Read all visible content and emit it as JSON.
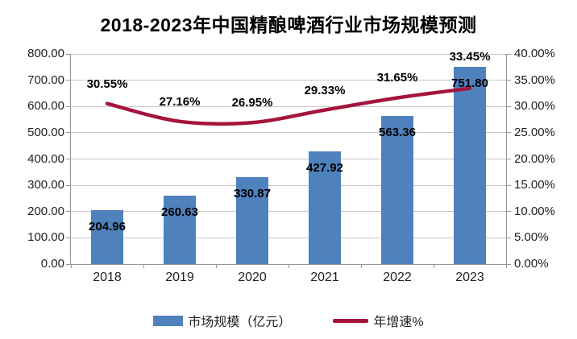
{
  "title": "2018-2023年中国精酿啤酒行业市场规模预测",
  "colors": {
    "bar": "#4F81BD",
    "line": "#A5143C",
    "gridline": "#c8c8c8",
    "axis": "#969696"
  },
  "chart_data": {
    "type": "bar",
    "subtype": "combo-bar-line",
    "title": "2018-2023年中国精酿啤酒行业市场规模预测",
    "categories": [
      "2018",
      "2019",
      "2020",
      "2021",
      "2022",
      "2023"
    ],
    "series": [
      {
        "name": "市场规模（亿元）",
        "type": "bar",
        "axis": "left",
        "color": "#4F81BD",
        "values": [
          204.96,
          260.63,
          330.87,
          427.92,
          563.36,
          751.8
        ],
        "labels": [
          "204.96",
          "260.63",
          "330.87",
          "427.92",
          "563.36",
          "751.80"
        ]
      },
      {
        "name": "年增速%",
        "type": "line",
        "axis": "right",
        "color": "#A5143C",
        "values": [
          30.55,
          27.16,
          26.95,
          29.33,
          31.65,
          33.45
        ],
        "labels": [
          "30.55%",
          "27.16%",
          "26.95%",
          "29.33%",
          "31.65%",
          "33.45%"
        ]
      }
    ],
    "left_axis": {
      "min": 0,
      "max": 800,
      "step": 100,
      "ticks": [
        "800.00",
        "700.00",
        "600.00",
        "500.00",
        "400.00",
        "300.00",
        "200.00",
        "100.00",
        "0.00"
      ]
    },
    "right_axis": {
      "min": 0,
      "max": 40,
      "step": 5,
      "ticks": [
        "40.00%",
        "35.00%",
        "30.00%",
        "25.00%",
        "20.00%",
        "15.00%",
        "10.00%",
        "5.00%",
        "0.00%"
      ]
    },
    "grid": true,
    "legend_position": "bottom"
  }
}
